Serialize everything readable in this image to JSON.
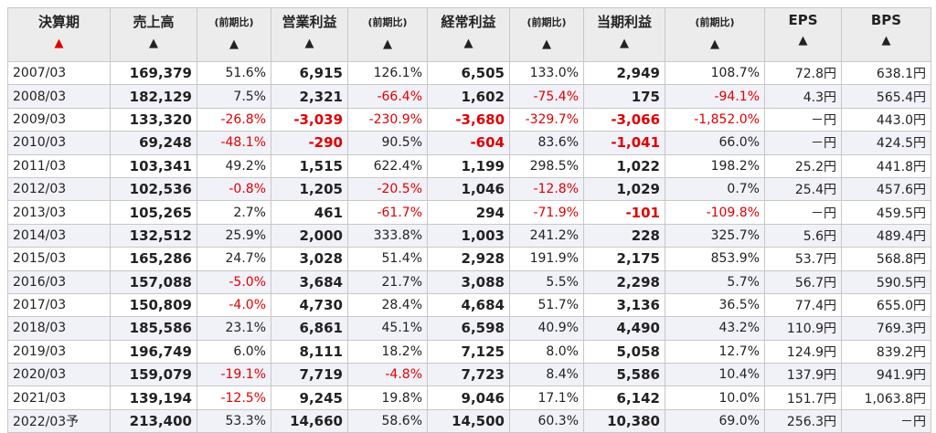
{
  "table": {
    "header": [
      "決算期",
      "売上高",
      "(前期比)",
      "営業利益",
      "(前期比)",
      "経常利益",
      "(前期比)",
      "当期利益",
      "(前期比)",
      "EPS",
      "BPS"
    ],
    "rows": [
      [
        "2007/03",
        "169,379",
        "51.6%",
        "6,915",
        "126.1%",
        "6,505",
        "133.0%",
        "2,949",
        "108.7%",
        "72.8円",
        "638.1円"
      ],
      [
        "2008/03",
        "182,129",
        "7.5%",
        "2,321",
        "-66.4%",
        "1,602",
        "-75.4%",
        "175",
        "-94.1%",
        "4.3円",
        "565.4円"
      ],
      [
        "2009/03",
        "133,320",
        "-26.8%",
        "-3,039",
        "-230.9%",
        "-3,680",
        "-329.7%",
        "-3,066",
        "-1,852.0%",
        "－円",
        "443.0円"
      ],
      [
        "2010/03",
        "69,248",
        "-48.1%",
        "-290",
        "90.5%",
        "-604",
        "83.6%",
        "-1,041",
        "66.0%",
        "－円",
        "424.5円"
      ],
      [
        "2011/03",
        "103,341",
        "49.2%",
        "1,515",
        "622.4%",
        "1,199",
        "298.5%",
        "1,022",
        "198.2%",
        "25.2円",
        "441.8円"
      ],
      [
        "2012/03",
        "102,536",
        "-0.8%",
        "1,205",
        "-20.5%",
        "1,046",
        "-12.8%",
        "1,029",
        "0.7%",
        "25.4円",
        "457.6円"
      ],
      [
        "2013/03",
        "105,265",
        "2.7%",
        "461",
        "-61.7%",
        "294",
        "-71.9%",
        "-101",
        "-109.8%",
        "－円",
        "459.5円"
      ],
      [
        "2014/03",
        "132,512",
        "25.9%",
        "2,000",
        "333.8%",
        "1,003",
        "241.2%",
        "228",
        "325.7%",
        "5.6円",
        "489.4円"
      ],
      [
        "2015/03",
        "165,286",
        "24.7%",
        "3,028",
        "51.4%",
        "2,928",
        "191.9%",
        "2,175",
        "853.9%",
        "53.7円",
        "568.8円"
      ],
      [
        "2016/03",
        "157,088",
        "-5.0%",
        "3,684",
        "21.7%",
        "3,088",
        "5.5%",
        "2,298",
        "5.7%",
        "56.7円",
        "590.5円"
      ],
      [
        "2017/03",
        "150,809",
        "-4.0%",
        "4,730",
        "28.4%",
        "4,684",
        "51.7%",
        "3,136",
        "36.5%",
        "77.4円",
        "655.0円"
      ],
      [
        "2018/03",
        "185,586",
        "23.1%",
        "6,861",
        "45.1%",
        "6,598",
        "40.9%",
        "4,490",
        "43.2%",
        "110.9円",
        "769.3円"
      ],
      [
        "2019/03",
        "196,749",
        "6.0%",
        "8,111",
        "18.2%",
        "7,125",
        "8.0%",
        "5,058",
        "12.7%",
        "124.9円",
        "839.2円"
      ],
      [
        "2020/03",
        "159,079",
        "-19.1%",
        "7,719",
        "-4.8%",
        "7,723",
        "8.4%",
        "5,586",
        "10.4%",
        "137.9円",
        "941.9円"
      ],
      [
        "2021/03",
        "139,194",
        "-12.5%",
        "9,245",
        "19.8%",
        "9,046",
        "17.1%",
        "6,142",
        "10.0%",
        "151.7円",
        "1,063.8円"
      ],
      [
        "2022/03予",
        "213,400",
        "53.3%",
        "14,660",
        "58.6%",
        "14,500",
        "60.3%",
        "10,380",
        "69.0%",
        "256.3円",
        "－円"
      ]
    ]
  }
}
